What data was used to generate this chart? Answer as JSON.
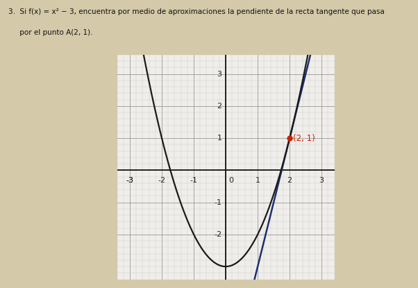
{
  "title_text": "3.  Si f(x) = x² − 3, encuentra por medio de aproximaciones la pendiente de la recta tangente que pasa",
  "title_line2": "     por el punto A(2, 1).",
  "xlim": [
    -3.4,
    3.4
  ],
  "ylim": [
    -3.3,
    3.6
  ],
  "xticks": [
    -3,
    -2,
    -1,
    0,
    1,
    2,
    3
  ],
  "yticks": [
    -2,
    -1,
    1,
    2,
    3
  ],
  "parabola_color": "#1a1a1a",
  "tangent_color": "#1e2f6e",
  "point_color": "#cc2200",
  "point_x": 2,
  "point_y": 1,
  "point_label": "(2, 1)",
  "tangent_slope": 4,
  "tangent_intercept": -7,
  "major_grid_color": "#999999",
  "minor_grid_color": "#cccccc",
  "axis_color": "#111111",
  "page_bg_color": "#d4c9a8",
  "graph_bg_color": "#f0eeea",
  "figsize": [
    6.02,
    4.15
  ],
  "dpi": 100
}
